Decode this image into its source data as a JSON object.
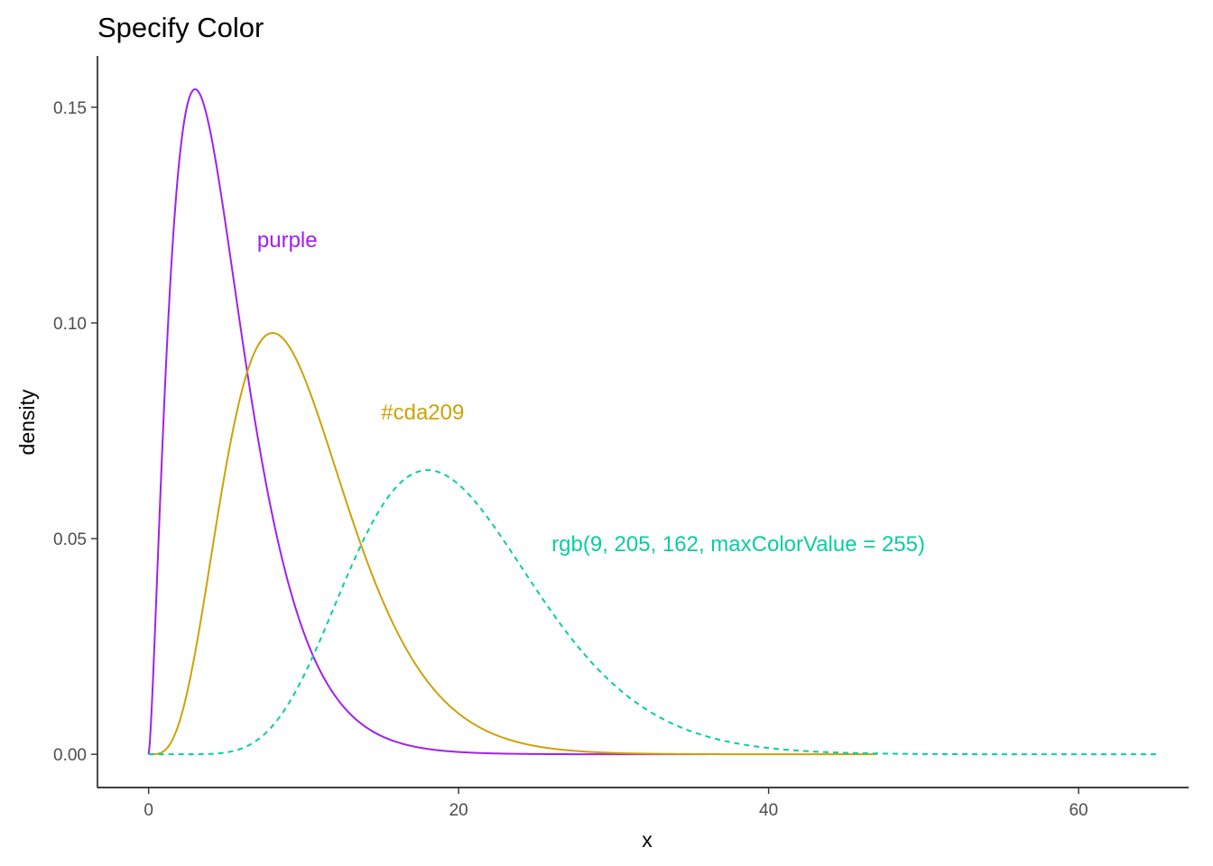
{
  "chart_data": {
    "type": "line",
    "title": "Specify Color",
    "xlabel": "x",
    "ylabel": "density",
    "xlim": [
      -3.3,
      67.1
    ],
    "ylim": [
      -0.0077,
      0.1619
    ],
    "x_ticks": [
      0,
      20,
      40,
      60
    ],
    "x_tick_labels": [
      "0",
      "20",
      "40",
      "60"
    ],
    "y_ticks": [
      0,
      0.05,
      0.1,
      0.15
    ],
    "y_tick_labels": [
      "0.00",
      "0.05",
      "0.10",
      "0.15"
    ],
    "grid": false,
    "series": [
      {
        "color": "#a020f0",
        "line_style": "solid",
        "distribution": "chi-squared",
        "df": 5,
        "x_range": [
          0,
          36
        ]
      },
      {
        "color": "#cda209",
        "line_style": "solid",
        "distribution": "chi-squared",
        "df": 10,
        "x_range": [
          0,
          47
        ]
      },
      {
        "color": "#09cda2",
        "line_style": "dashed",
        "distribution": "chi-squared",
        "df": 20,
        "x_range": [
          0,
          65
        ]
      }
    ],
    "annotations": [
      {
        "text": "purple",
        "x": 7,
        "y": 0.1195,
        "color": "#a020f0"
      },
      {
        "text": "#cda209",
        "x": 15,
        "y": 0.0795,
        "color": "#cda209"
      },
      {
        "text": "rgb(9, 205, 162, maxColorValue = 255)",
        "x": 26,
        "y": 0.049,
        "color": "#09cda2"
      }
    ]
  }
}
